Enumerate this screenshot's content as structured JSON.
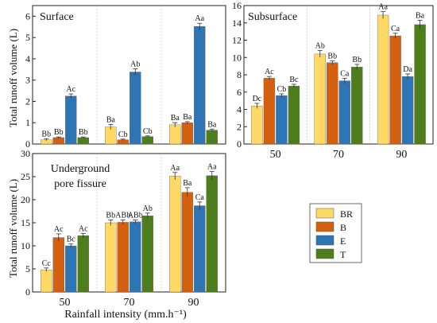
{
  "legend": {
    "entries": [
      {
        "label": "BR",
        "color": "#FFD966"
      },
      {
        "label": "B",
        "color": "#D4600F"
      },
      {
        "label": "E",
        "color": "#2E75B6"
      },
      {
        "label": "T",
        "color": "#4E7D1B"
      }
    ]
  },
  "shared": {
    "ylabel": "Total runoff volume (L)",
    "xlabel": "Rainfall intensity (mm.h⁻¹)"
  },
  "chart_data": [
    {
      "type": "bar",
      "title": "Surface",
      "categories": [
        "",
        "",
        ""
      ],
      "ylim": [
        0,
        6.5
      ],
      "yticks": [
        0,
        1,
        2,
        3,
        4,
        5,
        6
      ],
      "grid": false,
      "series": [
        {
          "name": "BR",
          "values": [
            0.2,
            0.8,
            0.9
          ],
          "errors": [
            0.05,
            0.12,
            0.1
          ],
          "labels": [
            "Bb",
            "Ba",
            "Ba"
          ]
        },
        {
          "name": "B",
          "values": [
            0.3,
            0.2,
            1.0
          ],
          "errors": [
            0.03,
            0.03,
            0.05
          ],
          "labels": [
            "Bb",
            "Cb",
            "Ba"
          ]
        },
        {
          "name": "E",
          "values": [
            2.25,
            3.38,
            5.52
          ],
          "errors": [
            0.1,
            0.15,
            0.15
          ],
          "labels": [
            "Ac",
            "Ab",
            "Aa"
          ]
        },
        {
          "name": "T",
          "values": [
            0.3,
            0.35,
            0.65
          ],
          "errors": [
            0.03,
            0.03,
            0.05
          ],
          "labels": [
            "Bb",
            "Cb",
            "Ba"
          ]
        }
      ]
    },
    {
      "type": "bar",
      "title": "Subsurface",
      "categories": [
        "50",
        "70",
        "90"
      ],
      "ylim": [
        0,
        16
      ],
      "yticks": [
        0,
        2,
        4,
        6,
        8,
        10,
        12,
        14,
        16
      ],
      "grid": false,
      "series": [
        {
          "name": "BR",
          "values": [
            4.4,
            10.4,
            14.9
          ],
          "errors": [
            0.3,
            0.4,
            0.4
          ],
          "labels": [
            "Dc",
            "Ab",
            "Aa"
          ]
        },
        {
          "name": "B",
          "values": [
            7.6,
            9.4,
            12.5
          ],
          "errors": [
            0.2,
            0.2,
            0.3
          ],
          "labels": [
            "Ac",
            "Bb",
            "Ca"
          ]
        },
        {
          "name": "E",
          "values": [
            5.6,
            7.3,
            7.8
          ],
          "errors": [
            0.2,
            0.3,
            0.3
          ],
          "labels": [
            "Cb",
            "Ca",
            "Da"
          ]
        },
        {
          "name": "T",
          "values": [
            6.7,
            8.9,
            13.8
          ],
          "errors": [
            0.2,
            0.3,
            0.5
          ],
          "labels": [
            "Bc",
            "Bb",
            "Ba"
          ]
        }
      ]
    },
    {
      "type": "bar",
      "title": "Underground\npore fissure",
      "categories": [
        "50",
        "70",
        "90"
      ],
      "ylim": [
        0,
        30
      ],
      "yticks": [
        0,
        5,
        10,
        15,
        20,
        25,
        30
      ],
      "grid": false,
      "series": [
        {
          "name": "BR",
          "values": [
            4.8,
            15.0,
            25.1
          ],
          "errors": [
            0.4,
            0.6,
            0.8
          ],
          "labels": [
            "Cc",
            "Bb",
            "Aa"
          ]
        },
        {
          "name": "B",
          "values": [
            11.8,
            15.1,
            21.6
          ],
          "errors": [
            0.8,
            0.5,
            1.0
          ],
          "labels": [
            "Ac",
            "ABb",
            "Ba"
          ]
        },
        {
          "name": "E",
          "values": [
            10.0,
            15.2,
            18.7
          ],
          "errors": [
            0.4,
            0.4,
            0.8
          ],
          "labels": [
            "Bc",
            "ABb",
            "Ca"
          ]
        },
        {
          "name": "T",
          "values": [
            12.2,
            16.5,
            25.2
          ],
          "errors": [
            0.5,
            0.6,
            0.9
          ],
          "labels": [
            "Ac",
            "Ab",
            "Aa"
          ]
        }
      ]
    }
  ]
}
